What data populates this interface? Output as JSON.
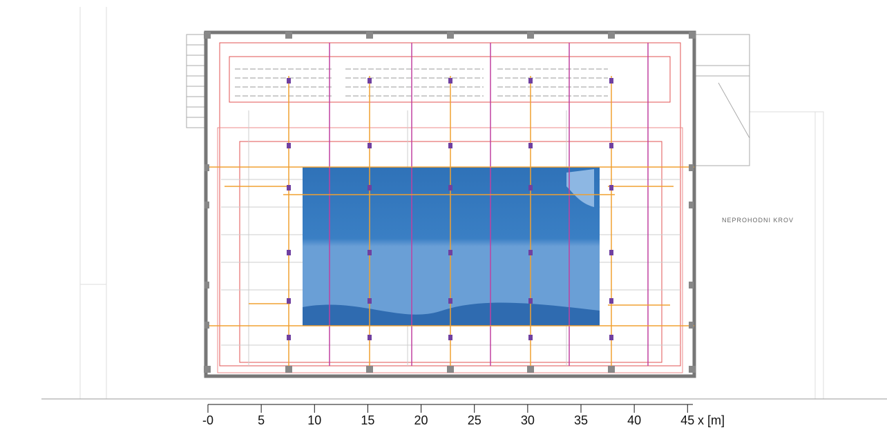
{
  "plan": {
    "roof_label": "NEPROHODNI KROV"
  },
  "scale": {
    "label": "x [m]",
    "lim": [
      0,
      45.5
    ],
    "ticks": [
      {
        "value": 0,
        "label": "-0"
      },
      5,
      10,
      15,
      20,
      25,
      30,
      35,
      40,
      45
    ]
  }
}
